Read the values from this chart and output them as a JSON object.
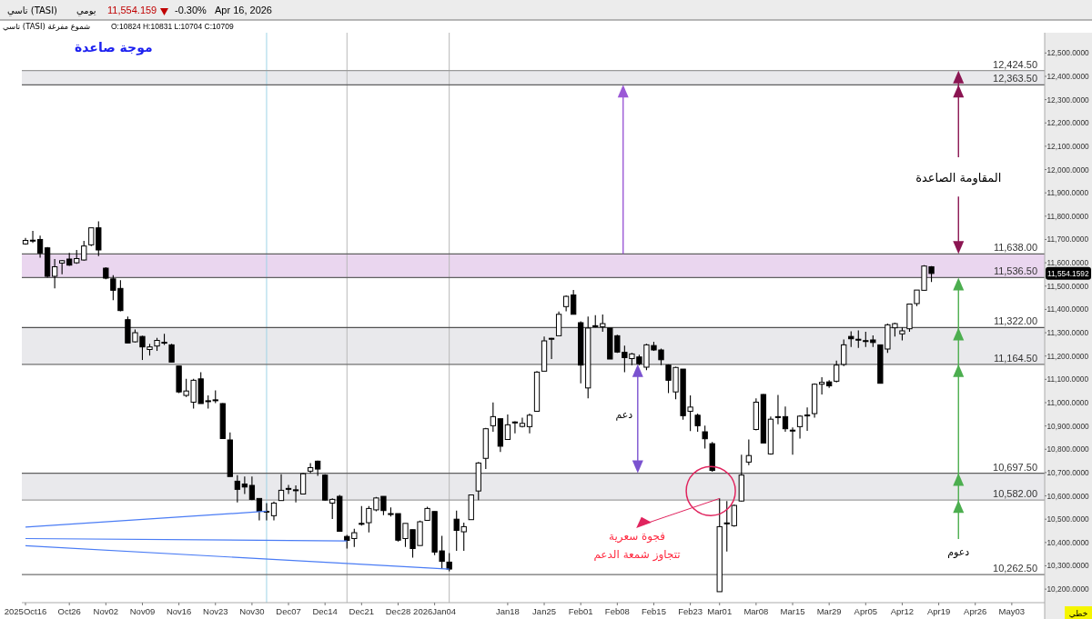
{
  "chart_data": {
    "type": "candlestick",
    "title": "موجة صاعدة",
    "categories": [
      "2025Oct16",
      null,
      null,
      null,
      null,
      null,
      "Oct26",
      null,
      null,
      null,
      null,
      "Nov02",
      null,
      null,
      null,
      null,
      "Nov09",
      null,
      null,
      null,
      null,
      "Nov16",
      null,
      null,
      null,
      null,
      "Nov23",
      null,
      null,
      null,
      null,
      "Nov30",
      null,
      null,
      null,
      null,
      "Dec07",
      null,
      null,
      null,
      null,
      "Dec14",
      null,
      null,
      null,
      null,
      "Dec21",
      null,
      null,
      null,
      null,
      "Dec28",
      null,
      null,
      null,
      null,
      "2026Jan04",
      null,
      null,
      null,
      null,
      null,
      null,
      null,
      null,
      null,
      "Jan18",
      null,
      null,
      null,
      null,
      "Jan25",
      null,
      null,
      null,
      null,
      "Feb01",
      null,
      null,
      null,
      null,
      "Feb08",
      null,
      null,
      null,
      null,
      "Feb15",
      null,
      null,
      null,
      null,
      "Feb23",
      null,
      null,
      null,
      "Mar01",
      null,
      null,
      null,
      null,
      "Mar08",
      null,
      null,
      null,
      null,
      "Mar15",
      null,
      null,
      null,
      null,
      "Mar29",
      null,
      null,
      null,
      null,
      "Apr05",
      null,
      null,
      null,
      null,
      "Apr12",
      null,
      null,
      null,
      null,
      "Apr19",
      null,
      null,
      null,
      null,
      "Apr26",
      null,
      null,
      null,
      null,
      "May03",
      null,
      null,
      null,
      null
    ],
    "ohlc": [
      [
        11681,
        11707,
        11677,
        11696
      ],
      [
        11697,
        11737,
        11685,
        11695
      ],
      [
        11700,
        11716,
        11622,
        11642
      ],
      [
        11664,
        11668,
        11537,
        11542
      ],
      [
        11542,
        11616,
        11490,
        11583
      ],
      [
        11599,
        11612,
        11551,
        11609
      ],
      [
        11616,
        11642,
        11587,
        11590
      ],
      [
        11600,
        11655,
        11596,
        11618
      ],
      [
        11612,
        11694,
        11609,
        11672
      ],
      [
        11677,
        11750,
        11672,
        11750
      ],
      [
        11750,
        11778,
        11629,
        11655
      ],
      [
        11577,
        11581,
        11529,
        11534
      ],
      [
        11531,
        11547,
        11440,
        11482
      ],
      [
        11490,
        11525,
        11392,
        11395
      ],
      [
        11356,
        11369,
        11256,
        11256
      ],
      [
        11261,
        11314,
        11258,
        11300
      ],
      [
        11284,
        11287,
        11183,
        11239
      ],
      [
        11228,
        11252,
        11202,
        11239
      ],
      [
        11243,
        11278,
        11222,
        11267
      ],
      [
        11259,
        11295,
        11248,
        11256
      ],
      [
        11248,
        11252,
        11174,
        11174
      ],
      [
        11157,
        11157,
        11041,
        11046
      ],
      [
        11031,
        11102,
        11024,
        11050
      ],
      [
        11002,
        11102,
        10975,
        11096
      ],
      [
        11102,
        11131,
        10996,
        10996
      ],
      [
        11008,
        11031,
        10975,
        11007
      ],
      [
        11012,
        11053,
        10998,
        11011
      ],
      [
        10996,
        10998,
        10846,
        10846
      ],
      [
        10840,
        10872,
        10683,
        10683
      ],
      [
        10663,
        10689,
        10572,
        10628
      ],
      [
        10651,
        10683,
        10608,
        10638
      ],
      [
        10645,
        10683,
        10582,
        10585
      ],
      [
        10589,
        10589,
        10495,
        10534
      ],
      [
        10534,
        10569,
        10495,
        10532
      ],
      [
        10515,
        10576,
        10495,
        10569
      ],
      [
        10580,
        10693,
        10580,
        10624
      ],
      [
        10632,
        10647,
        10608,
        10630
      ],
      [
        10626,
        10645,
        10572,
        10624
      ],
      [
        10608,
        10699,
        10606,
        10695
      ],
      [
        10706,
        10741,
        10697,
        10721
      ],
      [
        10749,
        10751,
        10686,
        10715
      ],
      [
        10689,
        10693,
        10580,
        10582
      ],
      [
        10569,
        10589,
        10501,
        10585
      ],
      [
        10598,
        10604,
        10446,
        10448
      ],
      [
        10426,
        10433,
        10374,
        10409
      ],
      [
        10417,
        10459,
        10381,
        10442
      ],
      [
        10482,
        10556,
        10472,
        10481
      ],
      [
        10485,
        10556,
        10443,
        10546
      ],
      [
        10540,
        10595,
        10534,
        10591
      ],
      [
        10598,
        10598,
        10517,
        10537
      ],
      [
        10524,
        10550,
        10511,
        10522
      ],
      [
        10524,
        10524,
        10404,
        10410
      ],
      [
        10417,
        10482,
        10381,
        10482
      ],
      [
        10455,
        10455,
        10335,
        10374
      ],
      [
        10387,
        10494,
        10387,
        10489
      ],
      [
        10495,
        10553,
        10495,
        10546
      ],
      [
        10533,
        10533,
        10346,
        10359
      ],
      [
        10364,
        10429,
        10286,
        10319
      ],
      [
        10316,
        10355,
        10277,
        10286
      ],
      [
        10500,
        10537,
        10364,
        10452
      ],
      [
        10446,
        10485,
        10364,
        10468
      ],
      [
        10498,
        10604,
        10498,
        10604
      ],
      [
        10621,
        10745,
        10582,
        10741
      ],
      [
        10761,
        10892,
        10715,
        10888
      ],
      [
        10901,
        11001,
        10875,
        10940
      ],
      [
        10931,
        10931,
        10788,
        10813
      ],
      [
        10842,
        10949,
        10842,
        10905
      ],
      [
        10917,
        10920,
        10868,
        10915
      ],
      [
        10898,
        10936,
        10894,
        10911
      ],
      [
        10897,
        10953,
        10868,
        10946
      ],
      [
        10963,
        11135,
        10963,
        11131
      ],
      [
        11135,
        11284,
        11135,
        11265
      ],
      [
        11276,
        11278,
        11187,
        11274
      ],
      [
        11287,
        11391,
        11287,
        11379
      ],
      [
        11412,
        11460,
        11392,
        11456
      ],
      [
        11462,
        11483,
        11379,
        11379
      ],
      [
        11343,
        11349,
        11083,
        11161
      ],
      [
        11063,
        11369,
        11018,
        11320
      ],
      [
        11330,
        11375,
        11323,
        11328
      ],
      [
        11326,
        11378,
        11304,
        11339
      ],
      [
        11320,
        11320,
        11187,
        11187
      ],
      [
        11287,
        11291,
        11213,
        11217
      ],
      [
        11216,
        11245,
        11131,
        11193
      ],
      [
        11189,
        11213,
        11161,
        11209
      ],
      [
        11196,
        11206,
        11161,
        11167
      ],
      [
        11152,
        11252,
        11139,
        11248
      ],
      [
        11245,
        11261,
        11222,
        11226
      ],
      [
        11226,
        11232,
        11161,
        11184
      ],
      [
        11161,
        11164,
        11041,
        11096
      ],
      [
        11046,
        11154,
        11015,
        11151
      ],
      [
        11144,
        11144,
        10927,
        10944
      ],
      [
        10963,
        11031,
        10878,
        10981
      ],
      [
        10946,
        10953,
        10875,
        10901
      ],
      [
        10875,
        10901,
        10803,
        10845
      ],
      [
        10824,
        10831,
        10704,
        10709
      ],
      [
        10189,
        10589,
        10189,
        10468
      ],
      [
        10484,
        10578,
        10361,
        10482
      ],
      [
        10472,
        10563,
        10468,
        10559
      ],
      [
        10578,
        10777,
        10576,
        10689
      ],
      [
        10745,
        10842,
        10732,
        10773
      ],
      [
        10885,
        11018,
        10881,
        11002
      ],
      [
        11035,
        11037,
        10827,
        10827
      ],
      [
        10780,
        10940,
        10777,
        10929
      ],
      [
        10940,
        11033,
        10907,
        10938
      ],
      [
        10940,
        10983,
        10875,
        10888
      ],
      [
        10882,
        10894,
        10777,
        10880
      ],
      [
        10897,
        10946,
        10846,
        10942
      ],
      [
        10947,
        10979,
        10879,
        10945
      ],
      [
        10953,
        11083,
        10936,
        11079
      ],
      [
        11079,
        11109,
        11035,
        11087
      ],
      [
        11089,
        11096,
        11063,
        11072
      ],
      [
        11092,
        11180,
        11087,
        11161
      ],
      [
        11164,
        11271,
        11157,
        11248
      ],
      [
        11284,
        11306,
        11239,
        11274
      ],
      [
        11272,
        11310,
        11235,
        11270
      ],
      [
        11266,
        11304,
        11239,
        11264
      ],
      [
        11269,
        11288,
        11239,
        11258
      ],
      [
        11248,
        11248,
        11083,
        11083
      ],
      [
        11230,
        11339,
        11213,
        11334
      ],
      [
        11321,
        11343,
        11284,
        11339
      ],
      [
        11295,
        11323,
        11267,
        11308
      ],
      [
        11317,
        11423,
        11304,
        11423
      ],
      [
        11425,
        11483,
        11414,
        11483
      ],
      [
        11482,
        11590,
        11482,
        11586
      ],
      [
        11583,
        11586,
        11518,
        11554.16
      ],
      null,
      null,
      null,
      null,
      null,
      null,
      null,
      null,
      null,
      null,
      null,
      null,
      null,
      null,
      null
    ],
    "series": [
      {
        "type": "line",
        "color": "#4a7cf5",
        "values": [
          10466,
          null,
          null,
          null,
          null,
          null,
          null,
          null,
          null,
          null,
          null,
          null,
          null,
          null,
          null,
          null,
          null,
          null,
          null,
          null,
          null,
          null,
          null,
          null,
          null,
          null,
          null,
          null,
          null,
          null,
          null,
          null,
          null,
          10534,
          null,
          null,
          null,
          null,
          null,
          null,
          null,
          null,
          null,
          null,
          null,
          null,
          null,
          null,
          null,
          null,
          null,
          null,
          null,
          null,
          null,
          null,
          null,
          null,
          null,
          null,
          null,
          null,
          null,
          null,
          null,
          null,
          null,
          null,
          null,
          null,
          null,
          null,
          null,
          null,
          null,
          null,
          null,
          null,
          null,
          null,
          null,
          null,
          null,
          null,
          null,
          null,
          null,
          null,
          null,
          null,
          null,
          null,
          null,
          null,
          null,
          null,
          null,
          null,
          null,
          null,
          null,
          null,
          null,
          null,
          null,
          null,
          null,
          null,
          null,
          null,
          null,
          null,
          null,
          null,
          null,
          null,
          null,
          null,
          null,
          null,
          null,
          null,
          null,
          null,
          null,
          null,
          null,
          null,
          null,
          null,
          null,
          null,
          null,
          null,
          null,
          null,
          null,
          null,
          null,
          null
        ]
      },
      {
        "type": "line",
        "color": "#4a7cf5",
        "values": [
          10417,
          null,
          null,
          null,
          null,
          null,
          null,
          null,
          null,
          null,
          null,
          null,
          null,
          null,
          null,
          null,
          null,
          null,
          null,
          null,
          null,
          null,
          null,
          null,
          null,
          null,
          null,
          null,
          null,
          null,
          null,
          null,
          null,
          null,
          null,
          null,
          null,
          null,
          null,
          null,
          null,
          null,
          null,
          null,
          10407,
          null,
          null,
          null,
          null,
          null,
          null,
          null,
          null,
          null,
          null,
          null,
          null,
          null,
          null,
          null,
          null,
          null,
          null,
          null,
          null,
          null,
          null,
          null,
          null,
          null,
          null,
          null,
          null,
          null,
          null,
          null,
          null,
          null,
          null,
          null,
          null,
          null,
          null,
          null,
          null,
          null,
          null,
          null,
          null,
          null,
          null,
          null,
          null,
          null,
          null,
          null,
          null,
          null,
          null,
          null,
          null,
          null,
          null,
          null,
          null,
          null,
          null,
          null,
          null,
          null,
          null,
          null,
          null,
          null,
          null,
          null,
          null,
          null,
          null,
          null,
          null,
          null,
          null,
          null,
          null,
          null,
          null,
          null,
          null,
          null,
          null,
          null,
          null,
          null,
          null,
          null,
          null,
          null,
          null,
          null
        ]
      },
      {
        "type": "line",
        "color": "#4a7cf5",
        "values": [
          10386,
          null,
          null,
          null,
          null,
          null,
          null,
          null,
          null,
          null,
          null,
          null,
          null,
          null,
          null,
          null,
          null,
          null,
          null,
          null,
          null,
          null,
          null,
          null,
          null,
          null,
          null,
          null,
          null,
          null,
          null,
          null,
          null,
          null,
          null,
          null,
          null,
          null,
          null,
          null,
          null,
          null,
          null,
          null,
          null,
          null,
          null,
          null,
          null,
          null,
          null,
          null,
          null,
          null,
          null,
          null,
          null,
          null,
          10286,
          null,
          null,
          null,
          null,
          null,
          null,
          null,
          null,
          null,
          null,
          null,
          null,
          null,
          null,
          null,
          null,
          null,
          null,
          null,
          null,
          null,
          null,
          null,
          null,
          null,
          null,
          null,
          null,
          null,
          null,
          null,
          null,
          null,
          null,
          null,
          null,
          null,
          null,
          null,
          null,
          null,
          null,
          null,
          null,
          null,
          null,
          null,
          null,
          null,
          null,
          null,
          null,
          null,
          null,
          null,
          null,
          null,
          null,
          null,
          null,
          null,
          null,
          null,
          null,
          null,
          null,
          null,
          null,
          null,
          null,
          null,
          null,
          null,
          null,
          null,
          null,
          null,
          null,
          null,
          null,
          null
        ]
      }
    ],
    "ylim": [
      10142,
      12587
    ],
    "yticks": [
      {
        "value": 10200,
        "label": "10,200.0000"
      },
      {
        "value": 10300,
        "label": "10,300.0000"
      },
      {
        "value": 10400,
        "label": "10,400.0000"
      },
      {
        "value": 10500,
        "label": "10,500.0000"
      },
      {
        "value": 10600,
        "label": "10,600.0000"
      },
      {
        "value": 10700,
        "label": "10,700.0000"
      },
      {
        "value": 10800,
        "label": "10,800.0000"
      },
      {
        "value": 10900,
        "label": "10,900.0000"
      },
      {
        "value": 11000,
        "label": "11,000.0000"
      },
      {
        "value": 11100,
        "label": "11,100.0000"
      },
      {
        "value": 11200,
        "label": "11,200.0000"
      },
      {
        "value": 11300,
        "label": "11,300.0000"
      },
      {
        "value": 11400,
        "label": "11,400.0000"
      },
      {
        "value": 11500,
        "label": "11,500.0000"
      },
      {
        "value": 11600,
        "label": "11,600.0000"
      },
      {
        "value": 11700,
        "label": "11,700.0000"
      },
      {
        "value": 11800,
        "label": "11,800.0000"
      },
      {
        "value": 11900,
        "label": "11,900.0000"
      },
      {
        "value": 12000,
        "label": "12,000.0000"
      },
      {
        "value": 12100,
        "label": "12,100.0000"
      },
      {
        "value": 12200,
        "label": "12,200.0000"
      },
      {
        "value": 12300,
        "label": "12,300.0000"
      },
      {
        "value": 12400,
        "label": "12,400.0000"
      },
      {
        "value": 12500,
        "label": "12,500.0000"
      }
    ],
    "bands": [
      {
        "axis": "y",
        "from": 12363.5,
        "to": 12424.5,
        "color": "#e9e9ec"
      },
      {
        "axis": "y",
        "from": 11536.5,
        "to": 11638,
        "color": "#ead6ef"
      },
      {
        "axis": "y",
        "from": 11164.5,
        "to": 11322,
        "color": "#e9e9ec"
      },
      {
        "axis": "y",
        "from": 10582,
        "to": 10697.5,
        "color": "#e9e9ec"
      }
    ],
    "ref_lines": [
      {
        "axis": "y",
        "value": 12424.5,
        "label": "12,424.50",
        "color": "#9a9a9a"
      },
      {
        "axis": "y",
        "value": 12363.5,
        "label": "12,363.50",
        "color": "#606060"
      },
      {
        "axis": "y",
        "value": 11638,
        "label": "11,638.00",
        "color": "#606060"
      },
      {
        "axis": "y",
        "value": 11536.5,
        "label": "11,536.50",
        "color": "#606060"
      },
      {
        "axis": "y",
        "value": 11322,
        "label": "11,322.00",
        "color": "#505050"
      },
      {
        "axis": "y",
        "value": 11164.5,
        "label": "11,164.50",
        "color": "#707070"
      },
      {
        "axis": "y",
        "value": 10697.5,
        "label": "10,697.50",
        "color": "#606060"
      },
      {
        "axis": "y",
        "value": 10582,
        "label": "10,582.00",
        "color": "#a0a0a0"
      },
      {
        "axis": "y",
        "value": 10262.5,
        "label": "10,262.50",
        "color": "#707070"
      }
    ],
    "annotations": [
      "تاسي (TASI)",
      "يومي",
      "11,554.159",
      "-0.30%",
      "Apr 16, 2026",
      "تاسي (TASI) شموع مفرغة",
      "O:10824  H:10831  L:10704  C:10709",
      {
        "text": "المقاومة الصاعدة",
        "y": 12363.5
      },
      "دعم",
      "دعوم",
      {
        "text": "فجوة سعرية",
        "x": "Mar01",
        "y": 10589
      },
      "تتجاوز شمعة الدعم",
      "11,554.1592",
      "خطي"
    ]
  }
}
